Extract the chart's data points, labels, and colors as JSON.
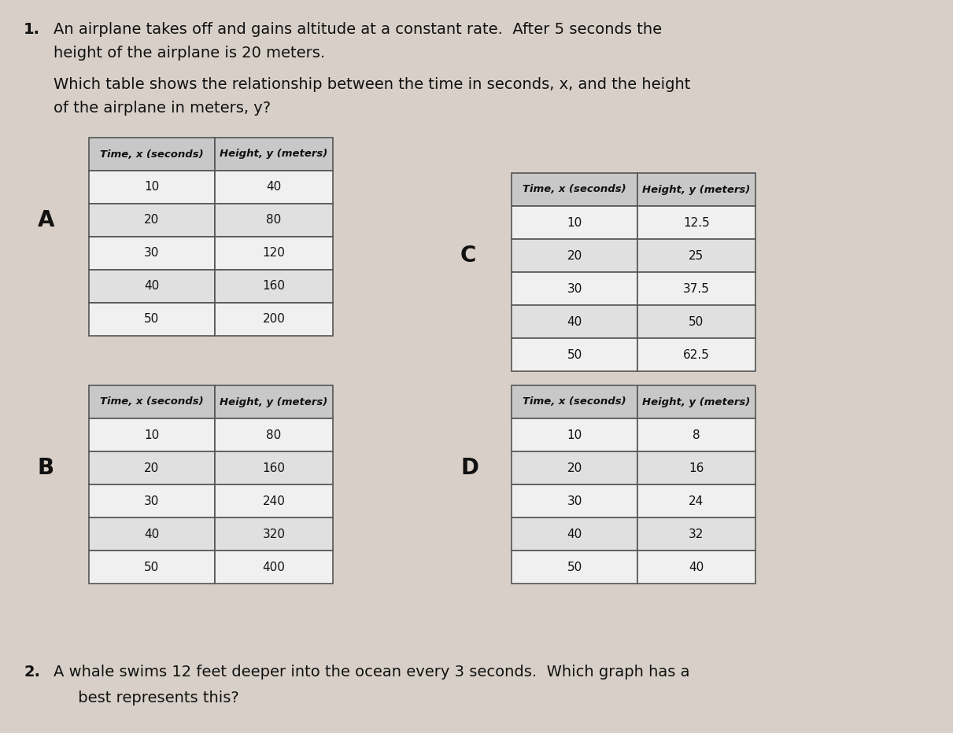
{
  "background_color": "#d8d0c8",
  "question1": {
    "number": "1.",
    "text_line1": "An airplane takes off and gains altitude at a constant rate.  After 5 seconds the",
    "text_line2": "height of the airplane is 20 meters.",
    "text_line3": "Which table shows the relationship between the time in seconds, x, and the height",
    "text_line4": "of the airplane in meters, y?"
  },
  "question2": {
    "number": "2.",
    "text_line1": "A whale swims 12 feet deeper into the ocean every 3 seconds.  Which graph has a",
    "text_line2": "     best represents this?"
  },
  "tables": {
    "A": {
      "label": "A",
      "header": [
        "Time, x (seconds)",
        "Height, y (meters)"
      ],
      "rows": [
        [
          10,
          40
        ],
        [
          20,
          80
        ],
        [
          30,
          120
        ],
        [
          40,
          160
        ],
        [
          50,
          200
        ]
      ]
    },
    "B": {
      "label": "B",
      "header": [
        "Time, x (seconds)",
        "Height, y (meters)"
      ],
      "rows": [
        [
          10,
          80
        ],
        [
          20,
          160
        ],
        [
          30,
          240
        ],
        [
          40,
          320
        ],
        [
          50,
          400
        ]
      ]
    },
    "C": {
      "label": "C",
      "header": [
        "Time, x (seconds)",
        "Height, y (meters)"
      ],
      "rows": [
        [
          10,
          12.5
        ],
        [
          20,
          25
        ],
        [
          30,
          37.5
        ],
        [
          40,
          50
        ],
        [
          50,
          62.5
        ]
      ]
    },
    "D": {
      "label": "D",
      "header": [
        "Time, x (seconds)",
        "Height, y (meters)"
      ],
      "rows": [
        [
          10,
          8
        ],
        [
          20,
          16
        ],
        [
          30,
          24
        ],
        [
          40,
          32
        ],
        [
          50,
          40
        ]
      ]
    }
  },
  "table_header_bg": "#c8c8c8",
  "table_row_bg_light": "#f0f0f0",
  "table_row_bg_dark": "#e0e0e0",
  "table_border_color": "#555555",
  "text_color": "#111111"
}
